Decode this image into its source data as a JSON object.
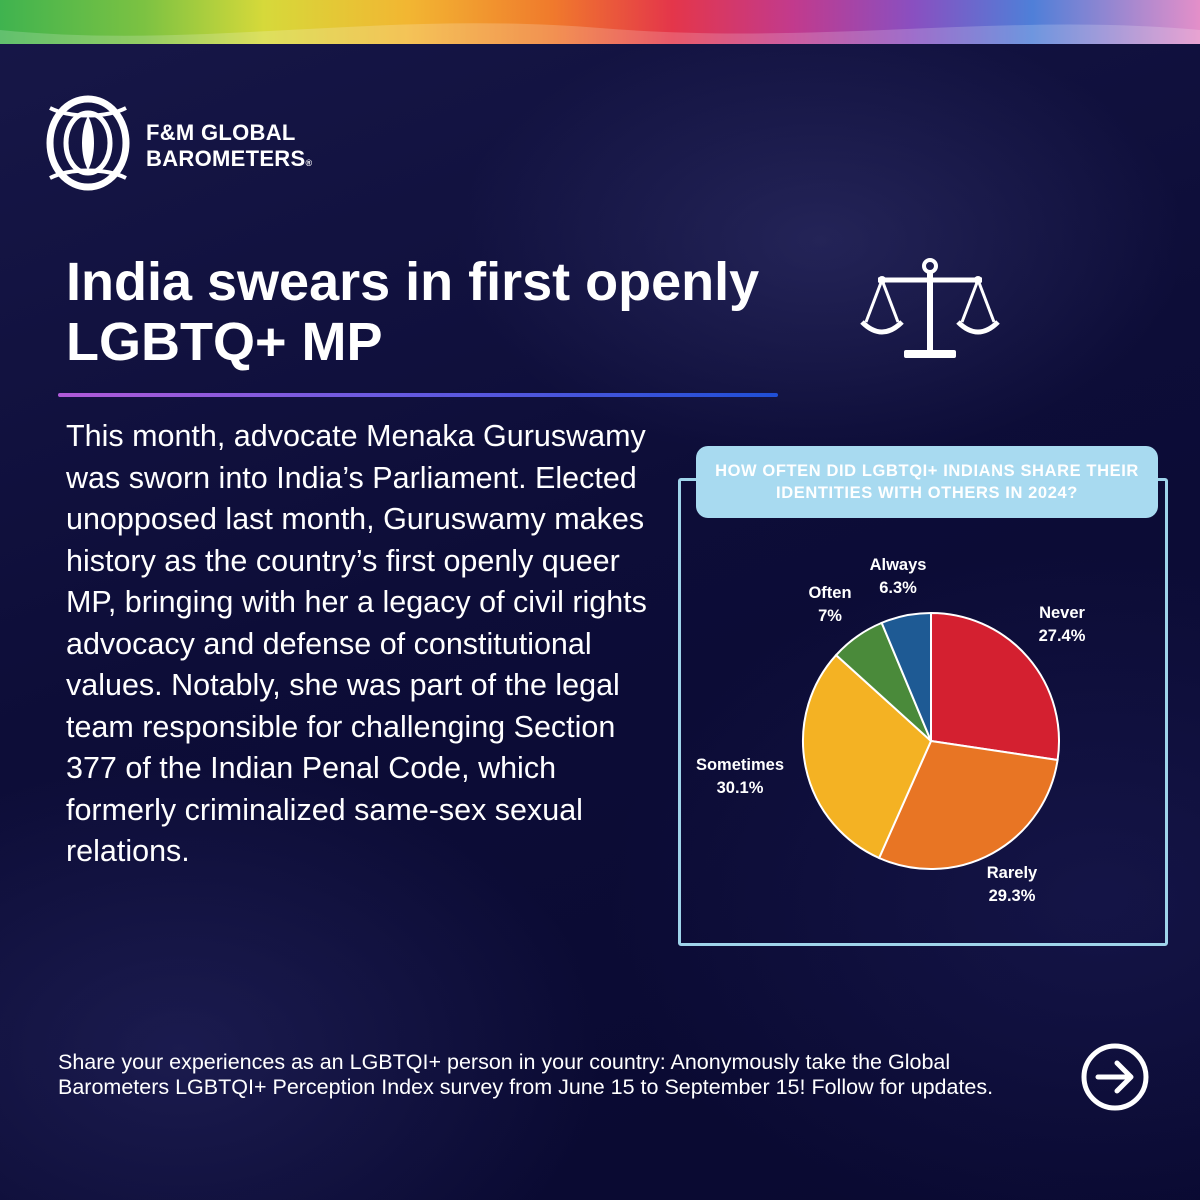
{
  "brand": {
    "line1": "F&M GLOBAL",
    "line2": "BAROMETERS",
    "reg": "®"
  },
  "headline": "India swears in first openly LGBTQ+ MP",
  "body": "This month, advocate Menaka Guruswamy was sworn into India’s Parliament. Elected unopposed last month, Guruswamy makes history as the country’s first openly queer MP, bringing with her a legacy of civil rights advocacy and defense of constitutional values. Notably, she was part of the legal team responsible for challenging Section 377 of the Indian Penal Code, which formerly criminalized same-sex sexual relations.",
  "icons": {
    "logo": "fm-global-barometers-logo",
    "scales": "scales-of-justice-icon",
    "arrow": "arrow-right-circle-icon"
  },
  "colors": {
    "background": "#0c0c36",
    "accent_line_start": "#b05ad8",
    "accent_line_end": "#1f4fd6",
    "chart_frame": "#9fd4ea"
  },
  "chart_data": {
    "type": "pie",
    "title": "HOW OFTEN DID LGBTQI+ INDIANS SHARE THEIR IDENTITIES WITH OTHERS IN 2024?",
    "slices": [
      {
        "label": "Never",
        "value": 27.4,
        "display": "27.4%",
        "color": "#d42030"
      },
      {
        "label": "Rarely",
        "value": 29.3,
        "display": "29.3%",
        "color": "#e87524"
      },
      {
        "label": "Sometimes",
        "value": 30.1,
        "display": "30.1%",
        "color": "#f4b223"
      },
      {
        "label": "Often",
        "value": 7,
        "display": "7%",
        "color": "#4a8a3a"
      },
      {
        "label": "Always",
        "value": 6.3,
        "display": "6.3%",
        "color": "#1e5a94"
      }
    ]
  },
  "cta": "Share your experiences as an LGBTQI+ person in your country: Anonymously take the Global Barometers LGBTQI+ Perception Index survey from June 15 to September 15! Follow for updates."
}
